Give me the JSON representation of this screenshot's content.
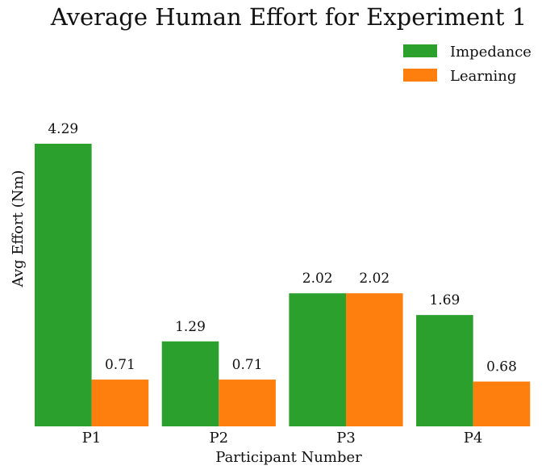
{
  "chart_data": {
    "type": "bar",
    "title": "Average Human Effort for Experiment 1",
    "xlabel": "Participant Number",
    "ylabel": "Avg Effort (Nm)",
    "categories": [
      "P1",
      "P2",
      "P3",
      "P4"
    ],
    "series": [
      {
        "name": "Impedance",
        "color": "#2ca02c",
        "values": [
          4.29,
          1.29,
          2.02,
          1.69
        ]
      },
      {
        "name": "Learning",
        "color": "#ff7f0e",
        "values": [
          0.71,
          0.71,
          2.02,
          0.68
        ]
      }
    ],
    "data_labels": [
      [
        "4.29",
        "1.29",
        "2.02",
        "1.69"
      ],
      [
        "0.71",
        "0.71",
        "2.02",
        "0.68"
      ]
    ],
    "ylim": [
      0,
      4.29
    ],
    "grid": false,
    "legend": "top-right"
  }
}
